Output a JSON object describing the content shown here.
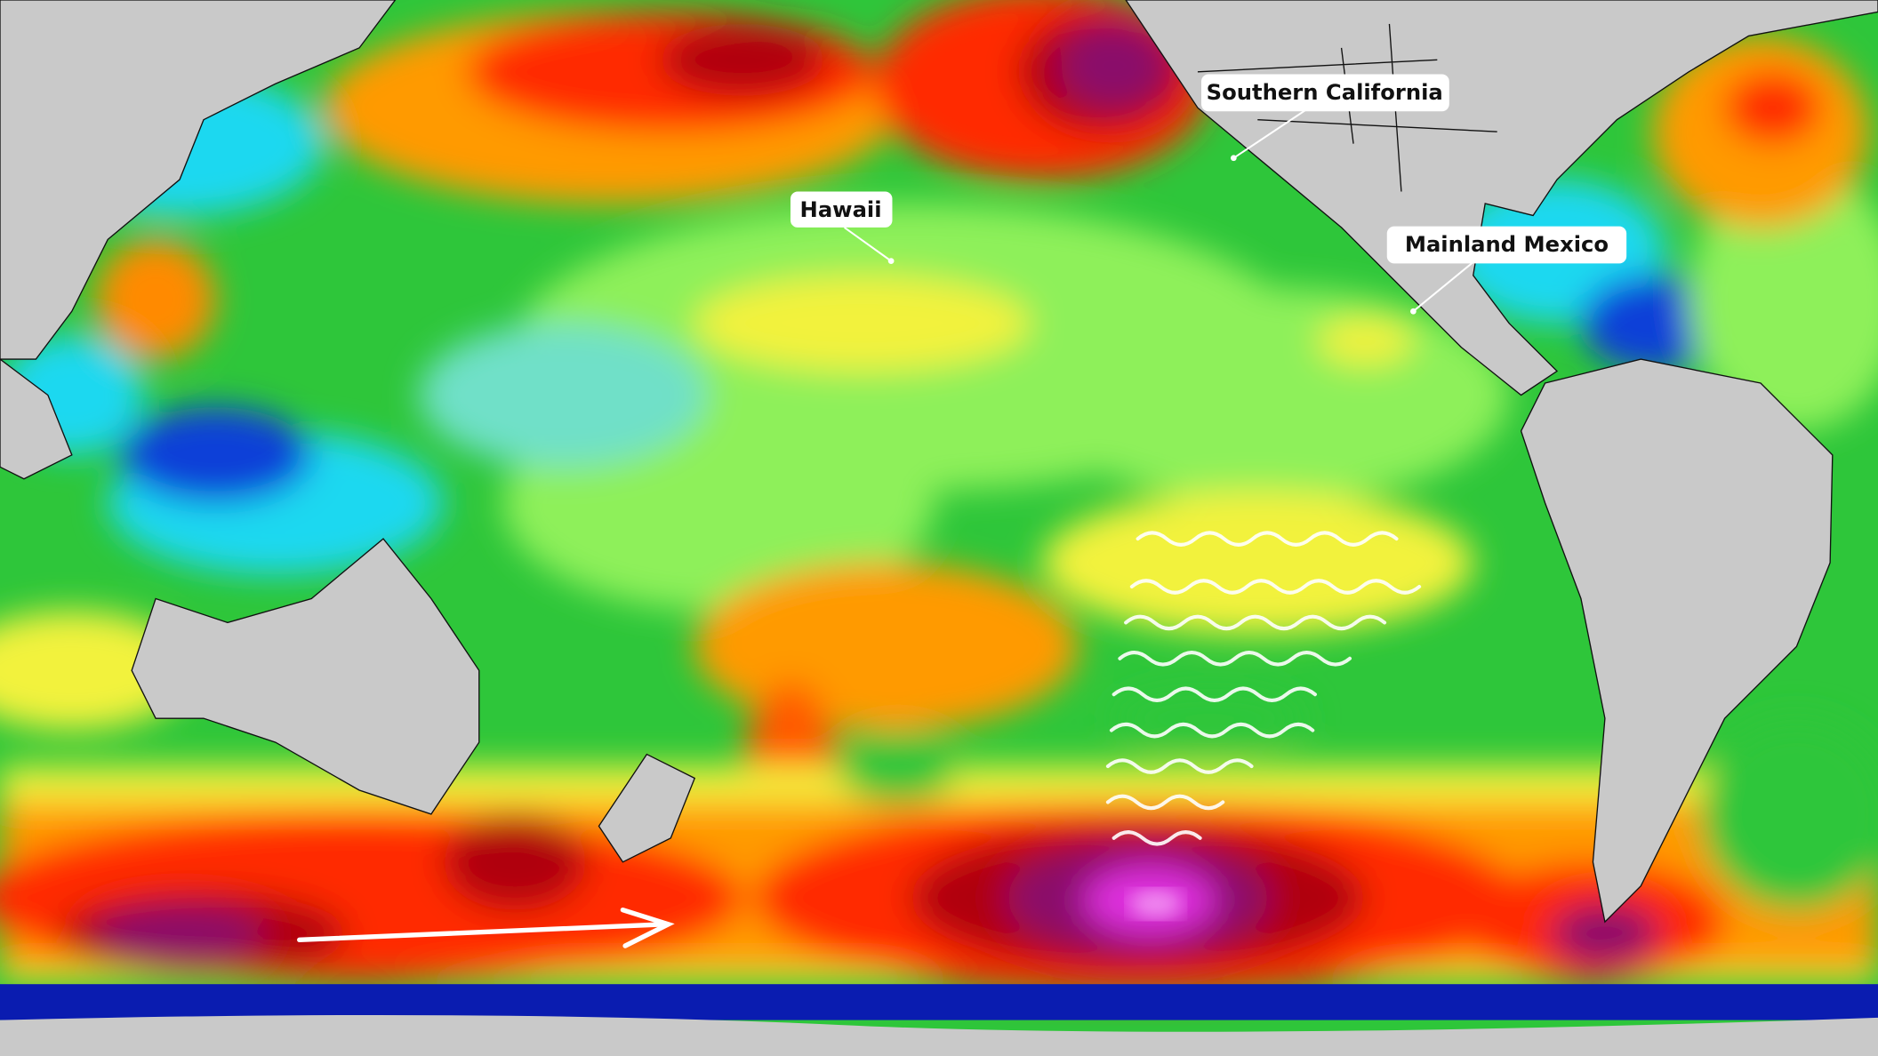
{
  "map": {
    "labels": [
      "Southern California",
      "Hawaii",
      "Mainland Mexico"
    ]
  }
}
